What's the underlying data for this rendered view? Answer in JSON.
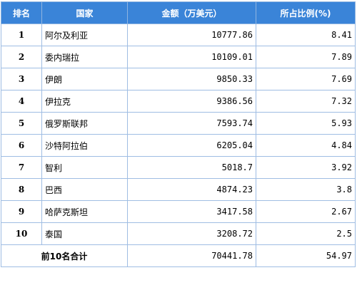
{
  "table": {
    "headers": {
      "rank": "排名",
      "country": "国家",
      "amount": "金额（万美元）",
      "share": "所占比例(%)"
    },
    "rows": [
      {
        "rank": "1",
        "country": "阿尔及利亚",
        "amount": "10777.86",
        "share": "8.41"
      },
      {
        "rank": "2",
        "country": "委内瑞拉",
        "amount": "10109.01",
        "share": "7.89"
      },
      {
        "rank": "3",
        "country": "伊朗",
        "amount": "9850.33",
        "share": "7.69"
      },
      {
        "rank": "4",
        "country": "伊拉克",
        "amount": "9386.56",
        "share": "7.32"
      },
      {
        "rank": "5",
        "country": "俄罗斯联邦",
        "amount": "7593.74",
        "share": "5.93"
      },
      {
        "rank": "6",
        "country": "沙特阿拉伯",
        "amount": "6205.04",
        "share": "4.84"
      },
      {
        "rank": "7",
        "country": "智利",
        "amount": "5018.7",
        "share": "3.92"
      },
      {
        "rank": "8",
        "country": "巴西",
        "amount": "4874.23",
        "share": "3.8"
      },
      {
        "rank": "9",
        "country": "哈萨克斯坦",
        "amount": "3417.58",
        "share": "2.67"
      },
      {
        "rank": "10",
        "country": "泰国",
        "amount": "3208.72",
        "share": "2.5"
      }
    ],
    "total": {
      "label": "前10名合计",
      "amount": "70441.78",
      "share": "54.97"
    }
  },
  "colors": {
    "header_bg": "#3a84d8",
    "header_text": "#ffffff",
    "border": "#9fbde3"
  }
}
